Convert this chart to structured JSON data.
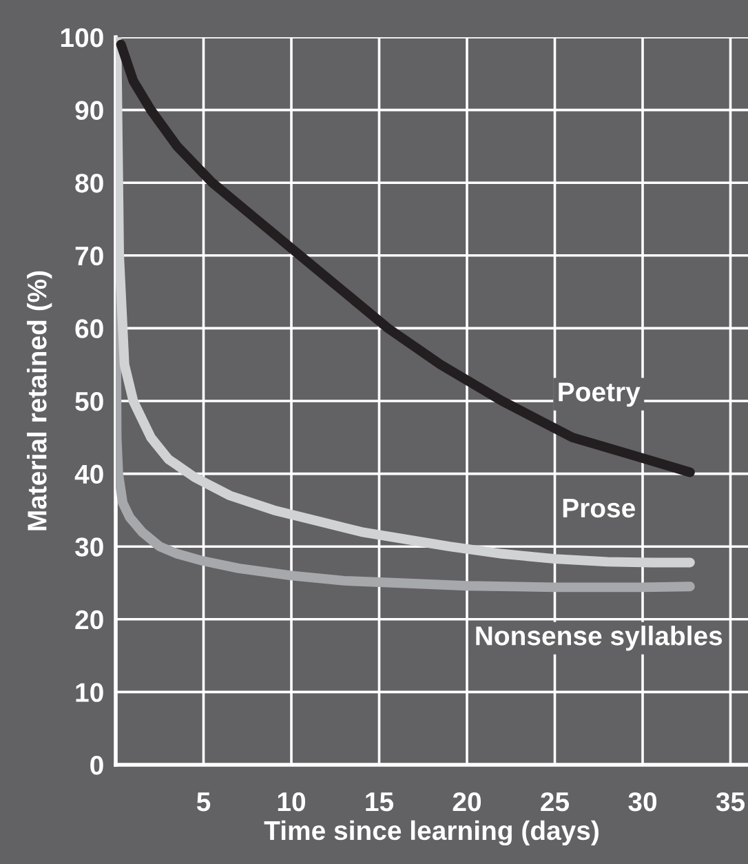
{
  "chart_data": {
    "type": "line",
    "xlabel": "Time since learning (days)",
    "ylabel": "Material retained (%)",
    "xlim": [
      0,
      36
    ],
    "ylim": [
      0,
      100
    ],
    "xticks": [
      5,
      10,
      15,
      20,
      25,
      30,
      35
    ],
    "yticks": [
      0,
      10,
      20,
      30,
      40,
      50,
      60,
      70,
      80,
      90,
      100
    ],
    "grid": true,
    "legend": false,
    "marker": "none",
    "line_style": "solid",
    "series": [
      {
        "name": "Poetry",
        "color": "#231f20",
        "x": [
          0.3,
          1,
          2,
          3.5,
          5.5,
          8,
          10.5,
          13,
          15.5,
          18.5,
          22,
          26,
          29.5,
          32.7
        ],
        "values": [
          99,
          94,
          90,
          85,
          80,
          75,
          70,
          65,
          60,
          55,
          50,
          45,
          42.5,
          40.2
        ]
      },
      {
        "name": "Prose",
        "color": "#d1d2d4",
        "x": [
          0.05,
          0.2,
          0.5,
          1,
          2,
          3,
          4.5,
          6.5,
          9,
          11.5,
          14,
          16.5,
          19,
          22,
          25,
          28,
          30.5,
          32.7
        ],
        "values": [
          100,
          70,
          55,
          50,
          45,
          42,
          39.5,
          37,
          35,
          33.5,
          32,
          31,
          30,
          29,
          28.3,
          27.9,
          27.8,
          27.8
        ]
      },
      {
        "name": "Nonsense syllables",
        "color": "#a7a8ab",
        "x": [
          0,
          0.03,
          0.06,
          0.15,
          0.4,
          0.8,
          1.5,
          2.5,
          3.5,
          5,
          7,
          10,
          13,
          16,
          20,
          25,
          30,
          32.7
        ],
        "values": [
          100,
          60,
          45,
          40,
          36,
          34,
          32,
          30,
          29,
          28,
          27,
          26,
          25.3,
          25,
          24.6,
          24.4,
          24.4,
          24.5
        ]
      }
    ]
  }
}
